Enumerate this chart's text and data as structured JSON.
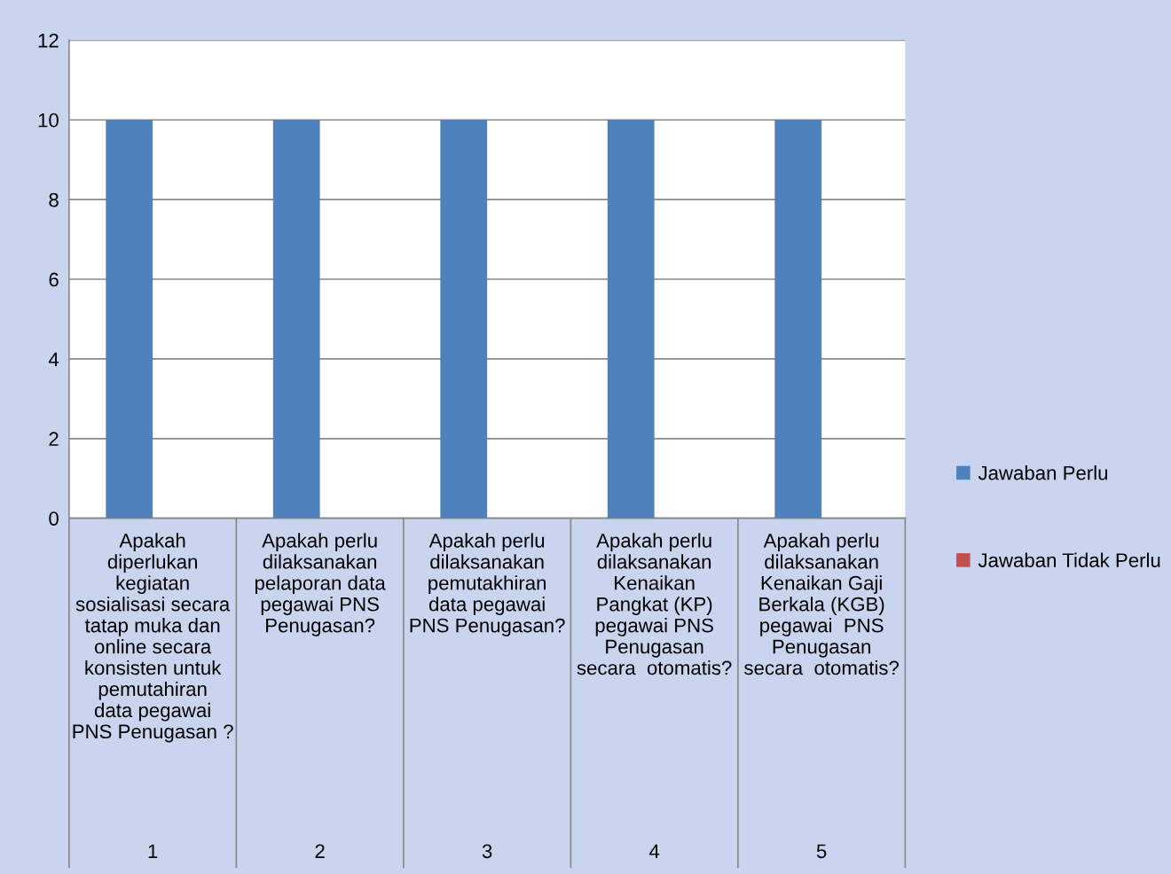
{
  "chart_data": {
    "type": "bar",
    "categories": [
      "Apakah\ndiperlukan\nkegiatan\nsosialisasi secara\ntatap muka dan\nonline secara\nkonsisten untuk\npemutahiran\ndata pegawai\nPNS Penugasan ?",
      "Apakah perlu\ndilaksanakan\npelaporan data\npegawai PNS\nPenugasan?",
      "Apakah perlu\ndilaksanakan\npemutakhiran\ndata pegawai\nPNS Penugasan?",
      "Apakah perlu\ndilaksanakan\nKenaikan\nPangkat (KP)\npegawai PNS\nPenugasan\nsecara  otomatis?",
      "Apakah perlu\ndilaksanakan\nKenaikan Gaji\nBerkala (KGB)\npegawai  PNS\nPenugasan\nsecara  otomatis?"
    ],
    "series": [
      {
        "name": "Jawaban Perlu",
        "color": "#4f81bd",
        "values": [
          10,
          10,
          10,
          10,
          10
        ]
      },
      {
        "name": "Jawaban Tidak Perlu",
        "color": "#c0504d",
        "values": [
          0,
          0,
          0,
          0,
          0
        ]
      }
    ],
    "annotations": [
      "1",
      "2",
      "3",
      "4",
      "5"
    ],
    "ylim": [
      0,
      12
    ],
    "yticks": [
      0,
      2,
      4,
      6,
      8,
      10,
      12
    ],
    "grid": "y",
    "legend": "right"
  }
}
